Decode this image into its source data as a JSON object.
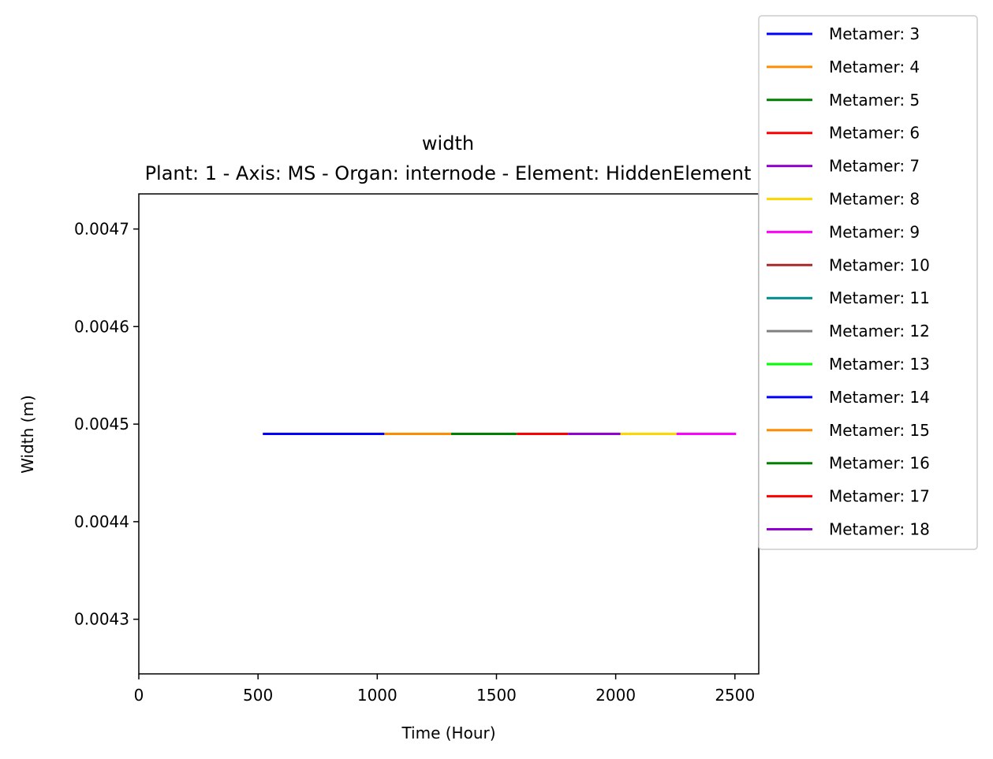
{
  "chart_data": {
    "type": "line",
    "title": "width",
    "subtitle": "Plant: 1 - Axis: MS - Organ: internode - Element: HiddenElement",
    "xlabel": "Time (Hour)",
    "ylabel": "Width (m)",
    "xlim": [
      0,
      2600
    ],
    "ylim": [
      0.004244,
      0.004736
    ],
    "xticks": [
      0,
      500,
      1000,
      1500,
      2000,
      2500
    ],
    "xtick_labels": [
      "0",
      "500",
      "1000",
      "1500",
      "2000",
      "2500"
    ],
    "yticks": [
      0.0043,
      0.0044,
      0.0045,
      0.0046,
      0.0047
    ],
    "ytick_labels": [
      "0.0043",
      "0.0044",
      "0.0045",
      "0.0046",
      "0.0047"
    ],
    "grid": false,
    "legend_position": "upper right, outside the axes",
    "series": [
      {
        "name": "Metamer: 3",
        "color": "#0000ff",
        "x": [
          520,
          1030
        ],
        "y": [
          0.00449,
          0.00449
        ]
      },
      {
        "name": "Metamer: 4",
        "color": "#ff8c00",
        "x": [
          1030,
          1310
        ],
        "y": [
          0.00449,
          0.00449
        ]
      },
      {
        "name": "Metamer: 5",
        "color": "#008000",
        "x": [
          1310,
          1585
        ],
        "y": [
          0.00449,
          0.00449
        ]
      },
      {
        "name": "Metamer: 6",
        "color": "#ff0000",
        "x": [
          1585,
          1800
        ],
        "y": [
          0.00449,
          0.00449
        ]
      },
      {
        "name": "Metamer: 7",
        "color": "#9400d3",
        "x": [
          1800,
          2020
        ],
        "y": [
          0.00449,
          0.00449
        ]
      },
      {
        "name": "Metamer: 8",
        "color": "#ffd700",
        "x": [
          2020,
          2255
        ],
        "y": [
          0.00449,
          0.00449
        ]
      },
      {
        "name": "Metamer: 9",
        "color": "#ff00ff",
        "x": [
          2255,
          2505
        ],
        "y": [
          0.00449,
          0.00449
        ]
      },
      {
        "name": "Metamer: 10",
        "color": "#a52a2a",
        "x": [],
        "y": []
      },
      {
        "name": "Metamer: 11",
        "color": "#008b8b",
        "x": [],
        "y": []
      },
      {
        "name": "Metamer: 12",
        "color": "#808080",
        "x": [],
        "y": []
      },
      {
        "name": "Metamer: 13",
        "color": "#00ff00",
        "x": [],
        "y": []
      },
      {
        "name": "Metamer: 14",
        "color": "#0000ff",
        "x": [],
        "y": []
      },
      {
        "name": "Metamer: 15",
        "color": "#ff8c00",
        "x": [],
        "y": []
      },
      {
        "name": "Metamer: 16",
        "color": "#008000",
        "x": [],
        "y": []
      },
      {
        "name": "Metamer: 17",
        "color": "#ff0000",
        "x": [],
        "y": []
      },
      {
        "name": "Metamer: 18",
        "color": "#9400d3",
        "x": [],
        "y": []
      }
    ]
  }
}
